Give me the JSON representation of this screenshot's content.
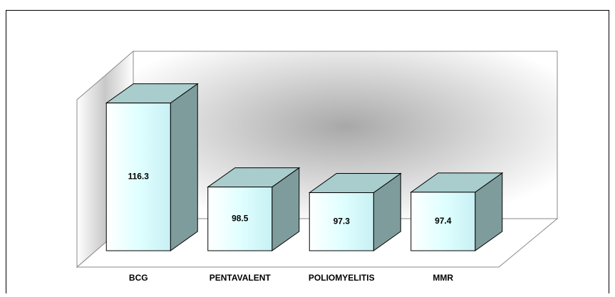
{
  "chart_data": {
    "type": "bar3d",
    "categories": [
      "BCG",
      "PENTAVALENT",
      "POLIOMYELITIS",
      "MMR"
    ],
    "values": [
      116.3,
      98.5,
      97.3,
      97.4
    ],
    "color": "#e8ffff",
    "ylim": [
      85,
      125
    ]
  }
}
